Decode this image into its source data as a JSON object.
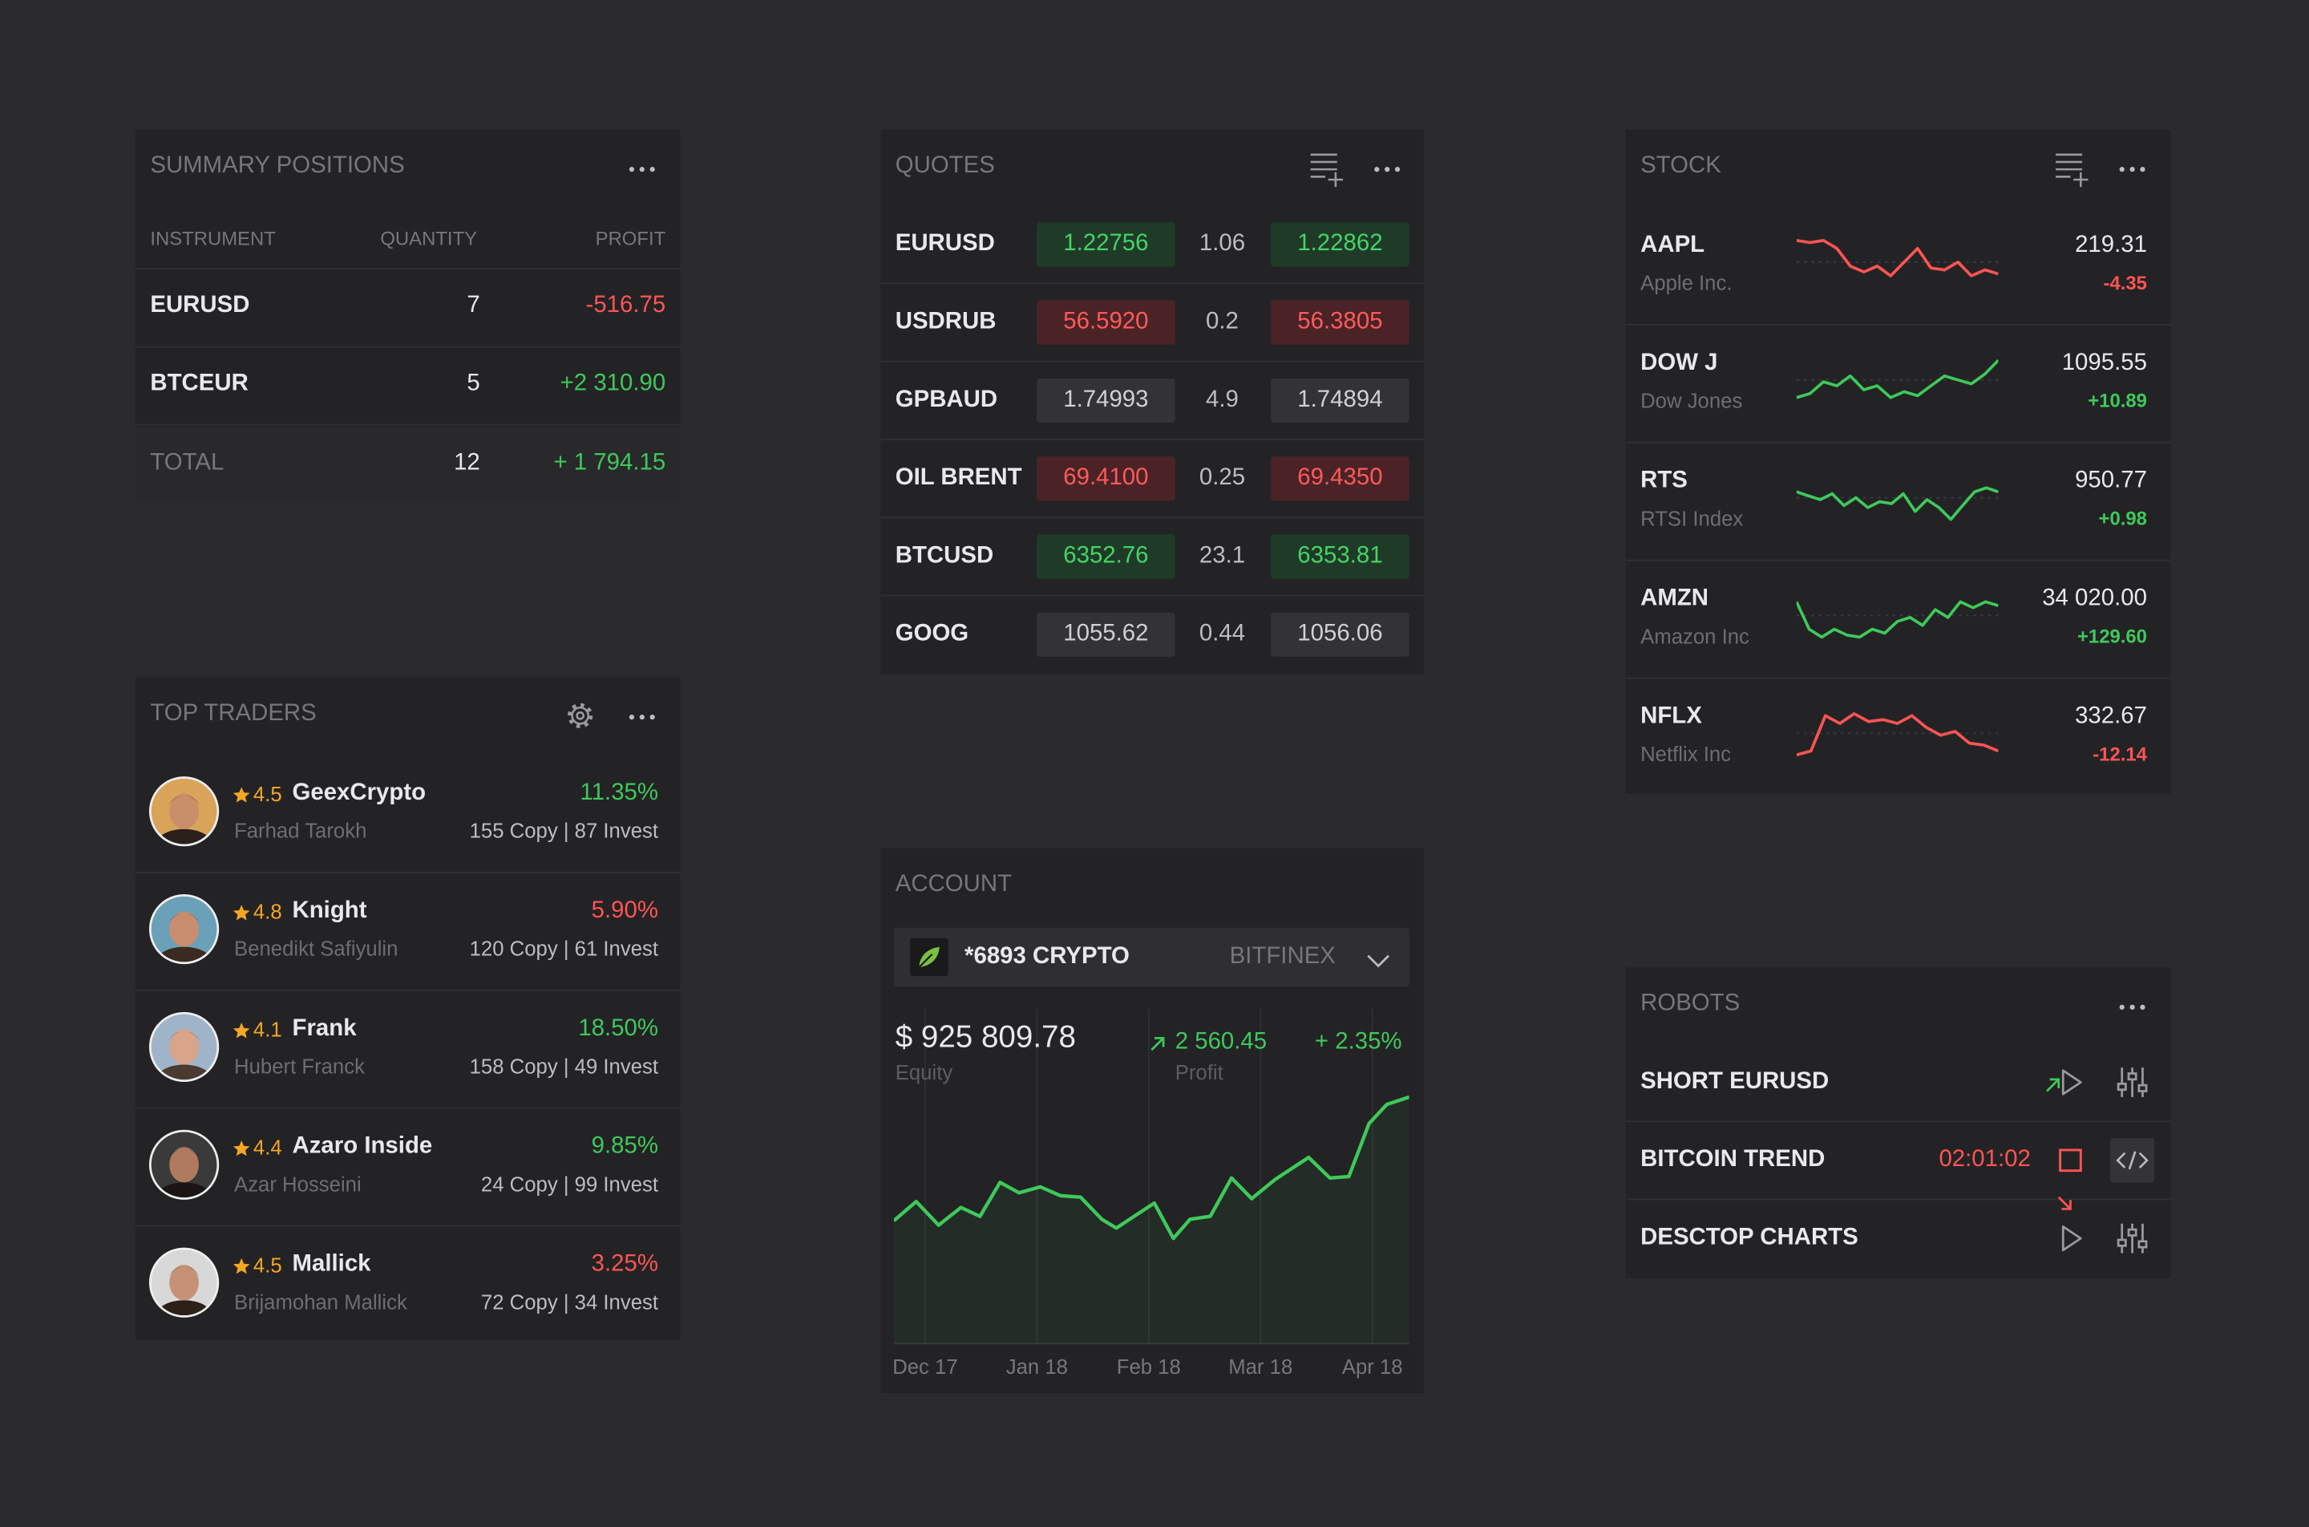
{
  "summary_positions": {
    "title": "SUMMARY POSITIONS",
    "columns": [
      "INSTRUMENT",
      "QUANTITY",
      "PROFIT"
    ],
    "rows": [
      {
        "instrument": "EURUSD",
        "quantity": "7",
        "profit": "-516.75",
        "color": "#ff5454"
      },
      {
        "instrument": "BTCEUR",
        "quantity": "5",
        "profit": "+2 310.90",
        "color": "#3ec95a"
      }
    ],
    "total": {
      "instrument": "TOTAL",
      "quantity": "12",
      "profit": "+ 1 794.15",
      "color": "#3ec95a"
    }
  },
  "quotes": {
    "title": "QUOTES",
    "rows": [
      {
        "symbol": "EURUSD",
        "bid": "1.22756",
        "spread": "1.06",
        "ask": "1.22862",
        "color": "green"
      },
      {
        "symbol": "USDRUB",
        "bid": "56.5920",
        "spread": "0.2",
        "ask": "56.3805",
        "color": "red"
      },
      {
        "symbol": "GPBAUD",
        "bid": "1.74993",
        "spread": "4.9",
        "ask": "1.74894",
        "color": "gray"
      },
      {
        "symbol": "OIL BRENT",
        "bid": "69.4100",
        "spread": "0.25",
        "ask": "69.4350",
        "color": "red"
      },
      {
        "symbol": "BTCUSD",
        "bid": "6352.76",
        "spread": "23.1",
        "ask": "6353.81",
        "color": "green"
      },
      {
        "symbol": "GOOG",
        "bid": "1055.62",
        "spread": "0.44",
        "ask": "1056.06",
        "color": "gray"
      }
    ]
  },
  "stock": {
    "title": "STOCK",
    "sparkline_ylim": [
      0,
      30
    ],
    "rows": [
      {
        "symbol": "AAPL",
        "name": "Apple Inc.",
        "price": "219.31",
        "change": "-4.35",
        "color": "#ff5454",
        "sparkline": [
          26,
          25,
          26,
          22,
          13,
          10,
          13,
          8,
          15,
          22,
          12,
          11,
          15,
          8,
          11,
          9
        ]
      },
      {
        "symbol": "DOW J",
        "name": "Dow Jones",
        "price": "1095.55",
        "change": "+10.89",
        "color": "#3ec95a",
        "sparkline": [
          6,
          8,
          14,
          12,
          17,
          10,
          12,
          6,
          9,
          7,
          12,
          17,
          15,
          13,
          18,
          25
        ]
      },
      {
        "symbol": "RTS",
        "name": "RTSI Index",
        "price": "950.77",
        "change": "+0.98",
        "color": "#3ec95a",
        "sparkline": [
          18,
          16,
          14,
          17,
          11,
          15,
          10,
          13,
          12,
          17,
          8,
          14,
          10,
          4,
          11,
          18,
          20,
          18
        ]
      },
      {
        "symbol": "AMZN",
        "name": "Amazon Inc",
        "price": "34 020.00",
        "change": "+129.60",
        "color": "#3ec95a",
        "sparkline": [
          22,
          8,
          4,
          8,
          5,
          4,
          8,
          6,
          12,
          14,
          10,
          18,
          14,
          22,
          19,
          22,
          20
        ]
      },
      {
        "symbol": "NFLX",
        "name": "Netflix Inc",
        "price": "332.67",
        "change": "-12.14",
        "color": "#ff5454",
        "sparkline": [
          4,
          6,
          24,
          20,
          25,
          21,
          22,
          20,
          24,
          18,
          14,
          16,
          10,
          9,
          6
        ]
      }
    ]
  },
  "top_traders": {
    "title": "TOP TRADERS",
    "rows": [
      {
        "rating": "4.5",
        "name": "GeexCrypto",
        "real_name": "Farhad Tarokh",
        "return": "11.35%",
        "direction": "up",
        "stats": "155 Copy | 87 Invest"
      },
      {
        "rating": "4.8",
        "name": "Knight",
        "real_name": "Benedikt Safiyulin",
        "return": "5.90%",
        "direction": "down",
        "stats": "120 Copy | 61 Invest"
      },
      {
        "rating": "4.1",
        "name": "Frank",
        "real_name": "Hubert Franck",
        "return": "18.50%",
        "direction": "up",
        "stats": "158 Copy | 49 Invest"
      },
      {
        "rating": "4.4",
        "name": "Azaro Inside",
        "real_name": "Azar Hosseini",
        "return": "9.85%",
        "direction": "up",
        "stats": "24 Copy | 99 Invest"
      },
      {
        "rating": "4.5",
        "name": "Mallick",
        "real_name": "Brijamohan Mallick",
        "return": "3.25%",
        "direction": "down",
        "stats": "72 Copy | 34 Invest"
      }
    ]
  },
  "account": {
    "title": "ACCOUNT",
    "account": "*6893 CRYPTO",
    "exchange": "BITFINEX",
    "equity": "$ 925 809.78",
    "equity_label": "Equity",
    "profit": "2 560.45",
    "profit_label": "Profit",
    "profit_pct": "+ 2.35%",
    "chart_data": {
      "type": "line",
      "x": [
        -0.28,
        -0.08,
        0.12,
        0.32,
        0.49,
        0.67,
        0.84,
        1.03,
        1.21,
        1.39,
        1.58,
        1.71,
        1.87,
        2.05,
        2.22,
        2.37,
        2.55,
        2.74,
        2.92,
        3.13,
        3.43,
        3.62,
        3.79,
        3.97,
        4.13,
        4.33
      ],
      "xlim": [
        -0.28,
        4.33
      ],
      "ylim": [
        0,
        228
      ],
      "xticks": [
        {
          "value": 0,
          "label": "Dec 17"
        },
        {
          "value": 1,
          "label": "Jan 18"
        },
        {
          "value": 2,
          "label": "Feb 18"
        },
        {
          "value": 3,
          "label": "Mar 18"
        },
        {
          "value": 4,
          "label": "Apr 18"
        }
      ],
      "grid": true,
      "series": [
        {
          "color": "#3ec95a",
          "values": [
            84,
            97,
            81,
            93,
            87,
            110,
            103,
            107,
            101,
            100,
            85,
            79,
            87,
            96,
            72,
            85,
            87,
            113,
            99,
            112,
            127,
            113,
            114,
            150,
            163,
            168
          ]
        }
      ]
    }
  },
  "robots": {
    "title": "ROBOTS",
    "rows": [
      {
        "name": "SHORT EURUSD"
      },
      {
        "name": "BITCOIN TREND",
        "timer": "02:01:02"
      },
      {
        "name": "DESCTOP CHARTS"
      }
    ]
  }
}
